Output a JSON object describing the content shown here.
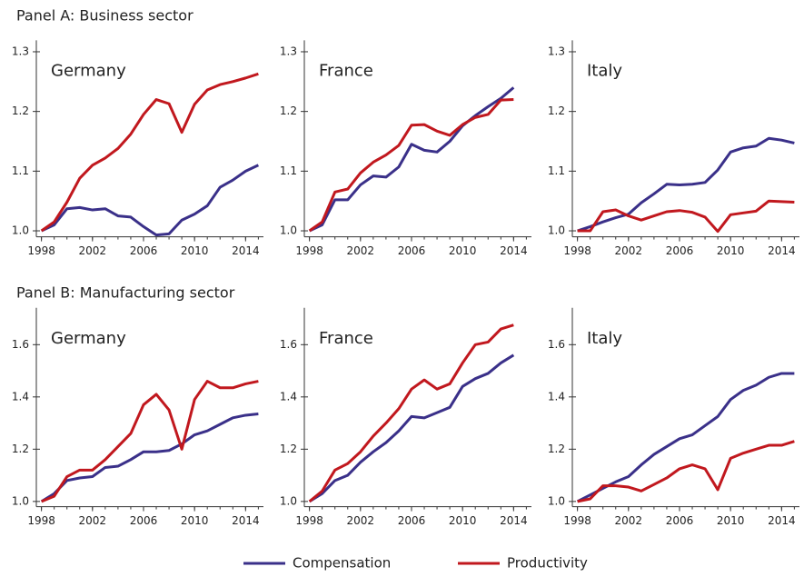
{
  "panels": [
    "Panel A: Business sector",
    "Panel B: Manufacturing sector"
  ],
  "chart_data": [
    {
      "type": "line",
      "title": "Germany",
      "x": [
        1998,
        1999,
        2000,
        2001,
        2002,
        2003,
        2004,
        2005,
        2006,
        2007,
        2008,
        2009,
        2010,
        2011,
        2012,
        2013,
        2014,
        2015
      ],
      "xlim": [
        1997.6,
        2015.4
      ],
      "xticks": [
        1998,
        2002,
        2006,
        2010,
        2014
      ],
      "ylim": [
        0.99,
        1.31
      ],
      "yticks": [
        {
          "value": 1.0,
          "label": "1.0"
        },
        1.1,
        1.2,
        1.3
      ],
      "series": [
        {
          "name": "Compensation",
          "color": "#3a3089",
          "values": [
            1.0,
            1.01,
            1.037,
            1.039,
            1.035,
            1.037,
            1.025,
            1.023,
            1.007,
            0.993,
            0.995,
            1.018,
            1.028,
            1.042,
            1.073,
            1.085,
            1.1,
            1.11
          ]
        },
        {
          "name": "Productivity",
          "color": "#c1181e",
          "values": [
            1.0,
            1.015,
            1.048,
            1.088,
            1.11,
            1.122,
            1.138,
            1.162,
            1.195,
            1.22,
            1.213,
            1.165,
            1.212,
            1.236,
            1.245,
            1.25,
            1.256,
            1.263
          ]
        }
      ]
    },
    {
      "type": "line",
      "title": "France",
      "x": [
        1998,
        1999,
        2000,
        2001,
        2002,
        2003,
        2004,
        2005,
        2006,
        2007,
        2008,
        2009,
        2010,
        2011,
        2012,
        2013,
        2014,
        2015
      ],
      "xlim": [
        1997.6,
        2015.4
      ],
      "xticks": [
        1998,
        2002,
        2006,
        2010,
        2014
      ],
      "ylim": [
        0.99,
        1.31
      ],
      "yticks": [
        {
          "value": 1.0,
          "label": "1.0"
        },
        1.1,
        1.2,
        1.3
      ],
      "series": [
        {
          "name": "Compensation",
          "color": "#3a3089",
          "values": [
            1.0,
            1.01,
            1.052,
            1.052,
            1.077,
            1.092,
            1.09,
            1.107,
            1.145,
            1.135,
            1.132,
            1.15,
            1.176,
            1.193,
            1.208,
            1.222,
            1.24,
            null
          ]
        },
        {
          "name": "Productivity",
          "color": "#c1181e",
          "values": [
            1.0,
            1.015,
            1.065,
            1.07,
            1.097,
            1.115,
            1.127,
            1.143,
            1.177,
            1.178,
            1.167,
            1.16,
            1.178,
            1.19,
            1.195,
            1.219,
            1.22,
            null
          ]
        }
      ]
    },
    {
      "type": "line",
      "title": "Italy",
      "x": [
        1998,
        1999,
        2000,
        2001,
        2002,
        2003,
        2004,
        2005,
        2006,
        2007,
        2008,
        2009,
        2010,
        2011,
        2012,
        2013,
        2014,
        2015
      ],
      "xlim": [
        1997.6,
        2015.4
      ],
      "xticks": [
        1998,
        2002,
        2006,
        2010,
        2014
      ],
      "ylim": [
        0.99,
        1.31
      ],
      "yticks": [
        {
          "value": 1.0,
          "label": "1.0"
        },
        1.1,
        1.2,
        1.3
      ],
      "series": [
        {
          "name": "Compensation",
          "color": "#3a3089",
          "values": [
            1.0,
            1.007,
            1.015,
            1.022,
            1.028,
            1.047,
            1.062,
            1.078,
            1.077,
            1.078,
            1.081,
            1.102,
            1.132,
            1.139,
            1.142,
            1.155,
            1.152,
            1.147
          ]
        },
        {
          "name": "Productivity",
          "color": "#c1181e",
          "values": [
            1.0,
            1.0,
            1.032,
            1.035,
            1.025,
            1.018,
            1.025,
            1.032,
            1.034,
            1.031,
            1.023,
            0.999,
            1.027,
            1.03,
            1.033,
            1.05,
            1.049,
            1.048
          ]
        }
      ]
    },
    {
      "type": "line",
      "title": "Germany",
      "x": [
        1998,
        1999,
        2000,
        2001,
        2002,
        2003,
        2004,
        2005,
        2006,
        2007,
        2008,
        2009,
        2010,
        2011,
        2012,
        2013,
        2014,
        2015
      ],
      "xlim": [
        1997.6,
        2015.4
      ],
      "xticks": [
        1998,
        2002,
        2006,
        2010,
        2014
      ],
      "ylim": [
        0.98,
        1.72
      ],
      "yticks": [
        {
          "value": 1.0,
          "label": "1.0"
        },
        1.2,
        1.4,
        1.6
      ],
      "series": [
        {
          "name": "Compensation",
          "color": "#3a3089",
          "values": [
            1.0,
            1.03,
            1.08,
            1.09,
            1.095,
            1.13,
            1.135,
            1.16,
            1.19,
            1.19,
            1.195,
            1.22,
            1.255,
            1.27,
            1.295,
            1.32,
            1.33,
            1.335
          ]
        },
        {
          "name": "Productivity",
          "color": "#c1181e",
          "values": [
            1.0,
            1.02,
            1.095,
            1.12,
            1.12,
            1.16,
            1.21,
            1.26,
            1.37,
            1.41,
            1.35,
            1.2,
            1.39,
            1.46,
            1.435,
            1.435,
            1.45,
            1.46
          ]
        }
      ]
    },
    {
      "type": "line",
      "title": "France",
      "x": [
        1998,
        1999,
        2000,
        2001,
        2002,
        2003,
        2004,
        2005,
        2006,
        2007,
        2008,
        2009,
        2010,
        2011,
        2012,
        2013,
        2014,
        2015
      ],
      "xlim": [
        1997.6,
        2015.4
      ],
      "xticks": [
        1998,
        2002,
        2006,
        2010,
        2014
      ],
      "ylim": [
        0.98,
        1.72
      ],
      "yticks": [
        {
          "value": 1.0,
          "label": "1.0"
        },
        1.2,
        1.4,
        1.6
      ],
      "series": [
        {
          "name": "Compensation",
          "color": "#3a3089",
          "values": [
            1.0,
            1.03,
            1.08,
            1.1,
            1.15,
            1.19,
            1.225,
            1.27,
            1.325,
            1.32,
            1.34,
            1.36,
            1.44,
            1.47,
            1.49,
            1.53,
            1.56,
            null
          ]
        },
        {
          "name": "Productivity",
          "color": "#c1181e",
          "values": [
            1.0,
            1.04,
            1.12,
            1.145,
            1.19,
            1.25,
            1.3,
            1.355,
            1.43,
            1.465,
            1.43,
            1.45,
            1.53,
            1.6,
            1.61,
            1.66,
            1.675,
            null
          ]
        }
      ]
    },
    {
      "type": "line",
      "title": "Italy",
      "x": [
        1998,
        1999,
        2000,
        2001,
        2002,
        2003,
        2004,
        2005,
        2006,
        2007,
        2008,
        2009,
        2010,
        2011,
        2012,
        2013,
        2014,
        2015
      ],
      "xlim": [
        1997.6,
        2015.4
      ],
      "xticks": [
        1998,
        2002,
        2006,
        2010,
        2014
      ],
      "ylim": [
        0.98,
        1.72
      ],
      "yticks": [
        {
          "value": 1.0,
          "label": "1.0"
        },
        1.2,
        1.4,
        1.6
      ],
      "series": [
        {
          "name": "Compensation",
          "color": "#3a3089",
          "values": [
            1.0,
            1.025,
            1.05,
            1.075,
            1.095,
            1.14,
            1.18,
            1.21,
            1.24,
            1.255,
            1.29,
            1.325,
            1.39,
            1.425,
            1.445,
            1.475,
            1.49,
            1.49
          ]
        },
        {
          "name": "Productivity",
          "color": "#c1181e",
          "values": [
            1.0,
            1.01,
            1.06,
            1.06,
            1.055,
            1.04,
            1.065,
            1.09,
            1.125,
            1.14,
            1.125,
            1.045,
            1.165,
            1.185,
            1.2,
            1.215,
            1.215,
            1.23
          ]
        }
      ]
    }
  ]
}
